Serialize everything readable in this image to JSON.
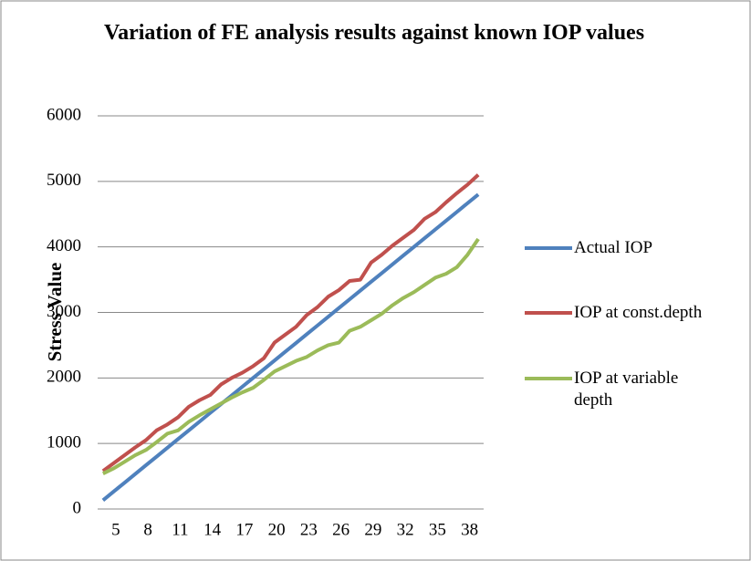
{
  "chart_data": {
    "type": "line",
    "title": "Variation of FE analysis results against known IOP values",
    "y_label": "Stress Value",
    "categories": [
      5,
      null,
      null,
      8,
      null,
      null,
      11,
      null,
      null,
      14,
      null,
      null,
      17,
      null,
      null,
      20,
      null,
      null,
      23,
      null,
      null,
      26,
      null,
      null,
      29,
      null,
      null,
      32,
      null,
      null,
      35,
      null,
      null,
      38,
      null,
      null
    ],
    "series": [
      {
        "name": "Actual IOP",
        "color": "#4f81bd",
        "values": [
          133,
          267,
          400,
          533,
          667,
          800,
          933,
          1067,
          1200,
          1333,
          1467,
          1600,
          1733,
          1867,
          2000,
          2133,
          2267,
          2400,
          2533,
          2667,
          2800,
          2933,
          3067,
          3200,
          3333,
          3467,
          3600,
          3733,
          3867,
          4000,
          4133,
          4267,
          4400,
          4533,
          4667,
          4800
        ]
      },
      {
        "name": "IOP at const.depth",
        "color": "#c0504d",
        "values": [
          580,
          700,
          820,
          940,
          1050,
          1200,
          1290,
          1400,
          1560,
          1660,
          1740,
          1900,
          2000,
          2080,
          2180,
          2300,
          2540,
          2660,
          2780,
          2960,
          3080,
          3240,
          3340,
          3480,
          3500,
          3760,
          3880,
          4020,
          4140,
          4260,
          4430,
          4530,
          4680,
          4820,
          4950,
          5100
        ]
      },
      {
        "name": "IOP at variable depth",
        "color": "#9bbb59",
        "values": [
          540,
          620,
          720,
          820,
          900,
          1020,
          1150,
          1200,
          1330,
          1430,
          1520,
          1610,
          1700,
          1780,
          1850,
          1970,
          2100,
          2180,
          2260,
          2320,
          2420,
          2500,
          2540,
          2720,
          2780,
          2880,
          2980,
          3110,
          3220,
          3310,
          3420,
          3530,
          3590,
          3690,
          3880,
          4120
        ]
      }
    ],
    "ylim": [
      0,
      6000
    ],
    "yticks": [
      0,
      1000,
      2000,
      3000,
      4000,
      5000,
      6000
    ],
    "grid": true,
    "legend": "right"
  }
}
